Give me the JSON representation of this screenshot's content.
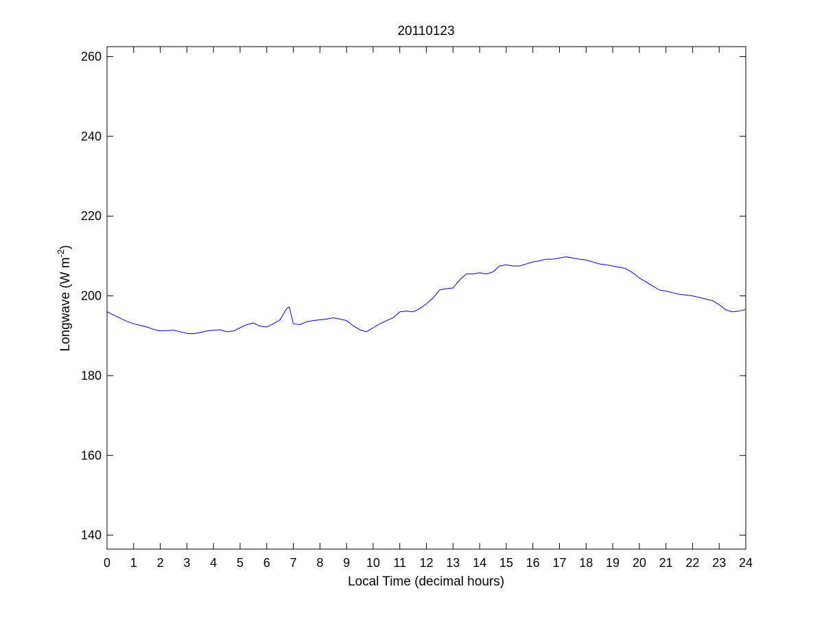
{
  "chart_data": {
    "type": "line",
    "title": "20110123",
    "xlabel": "Local Time (decimal hours)",
    "ylabel": {
      "main": "Longwave (W m",
      "superscript": "-2",
      "close": ")"
    },
    "xlim": [
      0,
      24
    ],
    "ylim": [
      136.5,
      262.5
    ],
    "x_ticks": [
      0,
      1,
      2,
      3,
      4,
      5,
      6,
      7,
      8,
      9,
      10,
      11,
      12,
      13,
      14,
      15,
      16,
      17,
      18,
      19,
      20,
      21,
      22,
      23,
      24
    ],
    "x_tick_labels": [
      "0",
      "1",
      "2",
      "3",
      "4",
      "5",
      "6",
      "7",
      "8",
      "9",
      "10",
      "11",
      "12",
      "13",
      "14",
      "15",
      "16",
      "17",
      "18",
      "19",
      "20",
      "21",
      "22",
      "23",
      "24"
    ],
    "y_ticks": [
      140,
      160,
      180,
      200,
      220,
      240,
      260
    ],
    "y_tick_labels": [
      "140",
      "160",
      "180",
      "200",
      "220",
      "240",
      "260"
    ],
    "grid": false,
    "box": true,
    "series": [
      {
        "color": "#0000cc",
        "x": [
          0,
          0.25,
          0.5,
          0.75,
          1.0,
          1.25,
          1.5,
          1.75,
          2.0,
          2.25,
          2.5,
          2.75,
          3.0,
          3.25,
          3.5,
          3.75,
          4.0,
          4.25,
          4.5,
          4.75,
          5.0,
          5.25,
          5.5,
          5.75,
          6.0,
          6.25,
          6.5,
          6.75,
          6.85,
          7.0,
          7.25,
          7.5,
          7.75,
          8.0,
          8.25,
          8.5,
          8.75,
          9.0,
          9.25,
          9.5,
          9.75,
          10.0,
          10.25,
          10.5,
          10.75,
          11.0,
          11.25,
          11.5,
          11.75,
          12.0,
          12.25,
          12.5,
          12.75,
          13.0,
          13.25,
          13.5,
          13.75,
          14.0,
          14.25,
          14.5,
          14.75,
          15.0,
          15.25,
          15.5,
          15.75,
          16.0,
          16.25,
          16.5,
          16.75,
          17.0,
          17.25,
          17.5,
          17.75,
          18.0,
          18.25,
          18.5,
          18.75,
          19.0,
          19.25,
          19.5,
          19.75,
          20.0,
          20.25,
          20.5,
          20.75,
          21.0,
          21.25,
          21.5,
          21.75,
          22.0,
          22.25,
          22.5,
          22.75,
          23.0,
          23.25,
          23.5,
          23.75,
          24.0
        ],
        "y": [
          196.0,
          195.2,
          194.4,
          193.6,
          193.0,
          192.6,
          192.2,
          191.6,
          191.2,
          191.3,
          191.4,
          191.0,
          190.6,
          190.5,
          190.8,
          191.2,
          191.4,
          191.5,
          191.0,
          191.2,
          192.0,
          192.8,
          193.2,
          192.4,
          192.2,
          193.0,
          194.0,
          196.8,
          197.2,
          193.0,
          192.8,
          193.5,
          193.8,
          194.0,
          194.2,
          194.5,
          194.2,
          193.8,
          192.5,
          191.5,
          191.0,
          192.0,
          193.0,
          193.8,
          194.5,
          196.0,
          196.2,
          196.0,
          196.8,
          198.0,
          199.5,
          201.5,
          201.8,
          202.0,
          204.0,
          205.5,
          205.5,
          205.8,
          205.5,
          206.0,
          207.5,
          207.8,
          207.5,
          207.5,
          208.0,
          208.5,
          208.8,
          209.2,
          209.2,
          209.5,
          209.8,
          209.5,
          209.2,
          209.0,
          208.5,
          208.0,
          207.8,
          207.5,
          207.2,
          206.8,
          205.8,
          204.5,
          203.5,
          202.5,
          201.5,
          201.2,
          200.8,
          200.4,
          200.2,
          200.0,
          199.6,
          199.2,
          198.8,
          197.8,
          196.5,
          196.0,
          196.2,
          196.6
        ]
      }
    ]
  }
}
